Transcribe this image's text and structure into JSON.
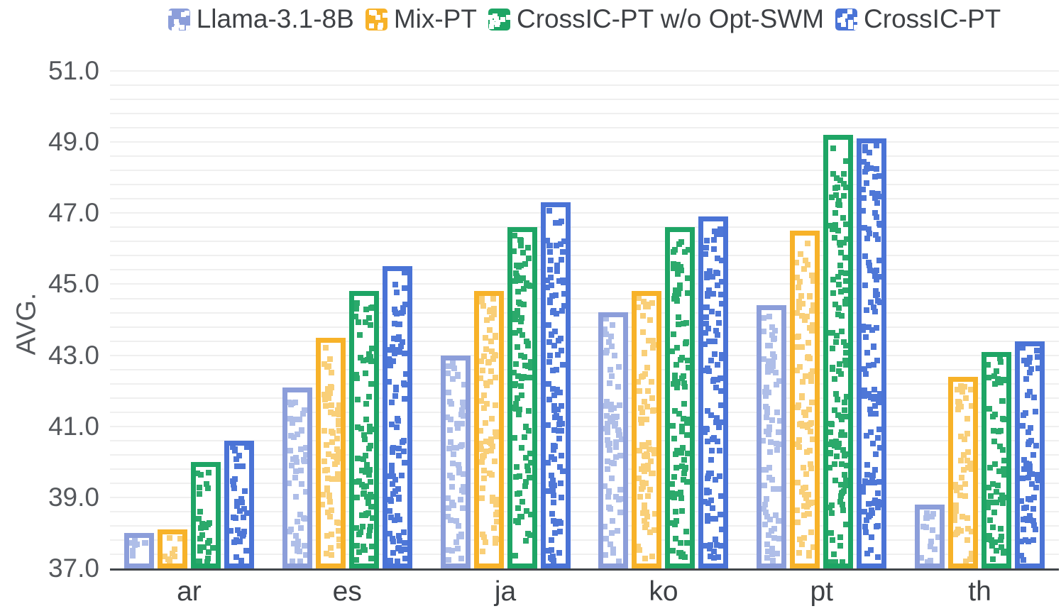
{
  "chart_data": {
    "type": "bar",
    "title": "",
    "xlabel": "",
    "ylabel": "AVG.",
    "ylim": [
      37.0,
      51.0
    ],
    "ytick_step": 2.0,
    "yticks": [
      "51.0",
      "49.0",
      "47.0",
      "45.0",
      "43.0",
      "41.0",
      "39.0",
      "37.0"
    ],
    "minor_grid_step": 0.4,
    "grid": true,
    "legend_position": "top",
    "categories": [
      "ar",
      "es",
      "ja",
      "ko",
      "pt",
      "th"
    ],
    "series": [
      {
        "name": "Llama-3.1-8B",
        "color": "#8c9eda",
        "pattern_color": "#afbee8",
        "values": [
          38.0,
          42.1,
          43.0,
          44.2,
          44.4,
          38.8
        ]
      },
      {
        "name": "Mix-PT",
        "color": "#f7b229",
        "pattern_color": "#f9cf78",
        "values": [
          38.1,
          43.5,
          44.8,
          44.8,
          46.5,
          42.4
        ]
      },
      {
        "name": "CrossIC-PT w/o Opt-SWM",
        "color": "#1ea565",
        "pattern_color": "#2ba96b",
        "values": [
          40.0,
          44.8,
          46.6,
          46.6,
          49.2,
          43.1
        ]
      },
      {
        "name": "CrossIC-PT",
        "color": "#4a73d6",
        "pattern_color": "#4e77d7",
        "values": [
          40.6,
          45.5,
          47.3,
          46.9,
          49.1,
          43.4
        ]
      }
    ],
    "bar_style": "white fill with scattered square hatch, thick colored outline"
  }
}
